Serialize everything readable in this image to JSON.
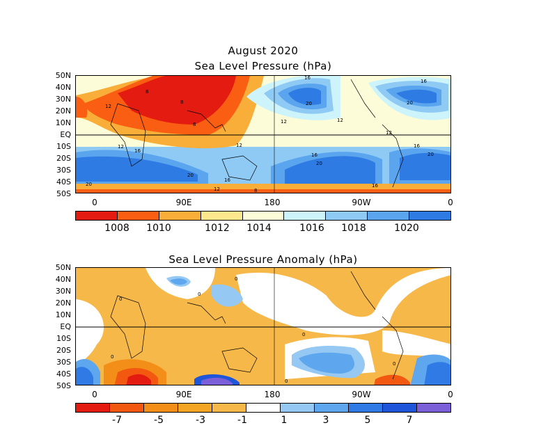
{
  "panel1": {
    "title_line1": "August 2020",
    "title_line2": "Sea Level Pressure (hPa)",
    "lat_labels": [
      "50N",
      "40N",
      "30N",
      "20N",
      "10N",
      "EQ",
      "10S",
      "20S",
      "30S",
      "40S",
      "50S"
    ],
    "lon_labels": [
      "0",
      "90E",
      "180",
      "90W",
      "0"
    ],
    "colorbar": {
      "colors": [
        "#e31b10",
        "#f95e12",
        "#f8ae38",
        "#fde88e",
        "#fdfcd8",
        "#cdf3fb",
        "#8fcaf5",
        "#5aa5ee",
        "#2e7be4"
      ],
      "labels": [
        "1008",
        "1010",
        "1012",
        "1014",
        "1016",
        "1018",
        "1020"
      ]
    },
    "contour_labels": [
      "8",
      "8",
      "8",
      "12",
      "12",
      "12",
      "12",
      "12",
      "12",
      "16",
      "16",
      "16",
      "16",
      "16",
      "16",
      "16",
      "20",
      "20",
      "20",
      "20",
      "20",
      "20",
      "12",
      "8"
    ]
  },
  "panel2": {
    "title": "Sea Level Pressure Anomaly (hPa)",
    "lat_labels": [
      "50N",
      "40N",
      "30N",
      "20N",
      "10N",
      "EQ",
      "10S",
      "20S",
      "30S",
      "40S",
      "50S"
    ],
    "lon_labels": [
      "0",
      "90E",
      "180",
      "90W",
      "0"
    ],
    "colorbar": {
      "colors": [
        "#e31b10",
        "#f2580f",
        "#f38f18",
        "#f5a524",
        "#f7b84a",
        "#ffffff",
        "#95c9f3",
        "#5ea7ee",
        "#2f7ae4",
        "#1f56d9",
        "#7b5fd8"
      ],
      "labels": [
        "-7",
        "-5",
        "-3",
        "-1",
        "1",
        "3",
        "5",
        "7"
      ]
    },
    "contour_labels": [
      "0",
      "0",
      "0",
      "0",
      "0",
      "0",
      "0"
    ]
  }
}
